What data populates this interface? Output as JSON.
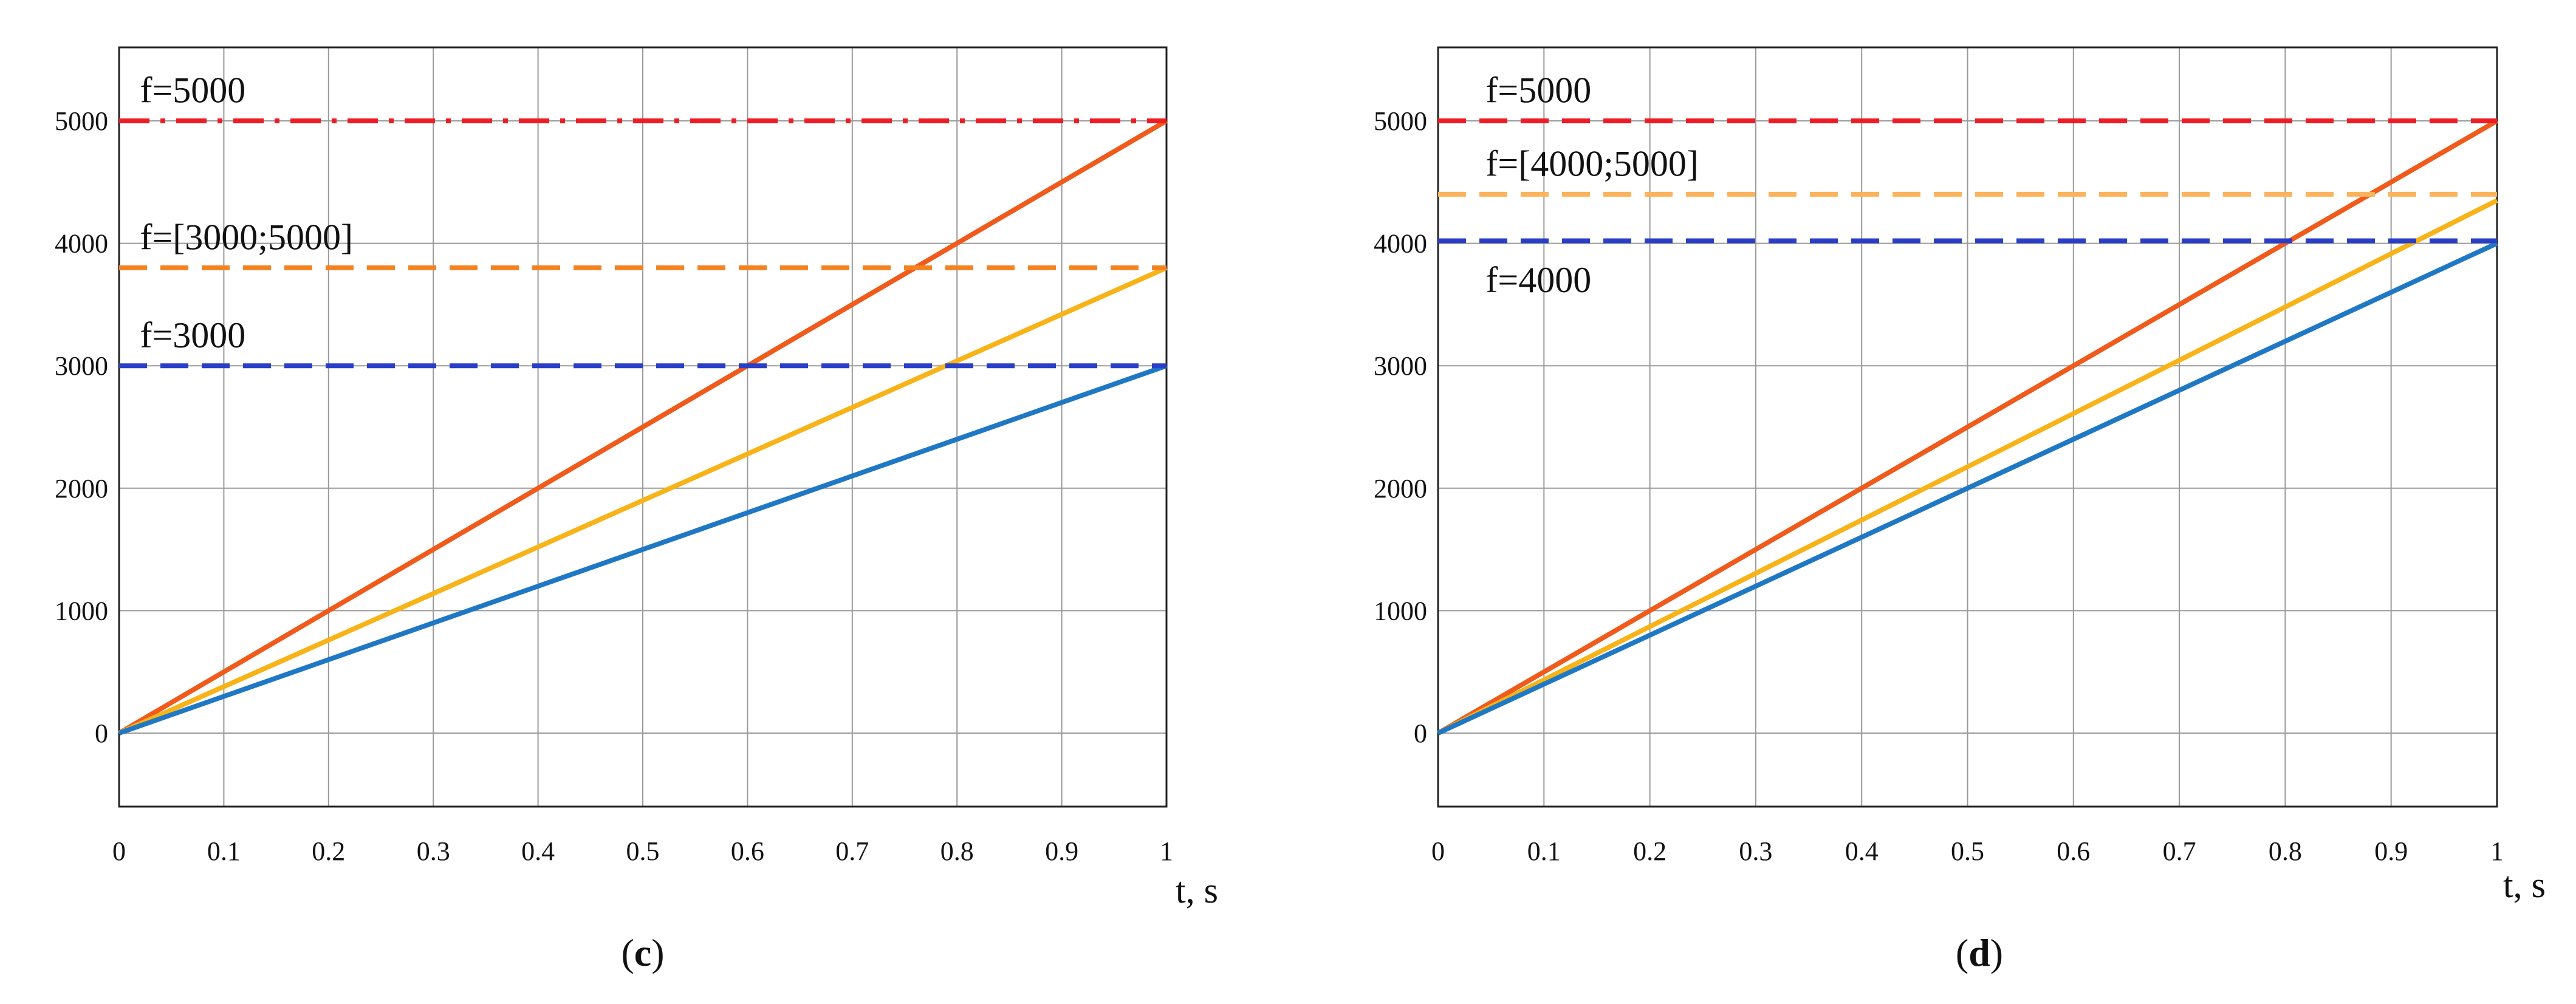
{
  "chart_data": [
    {
      "type": "line",
      "caption": "c",
      "xlabel": "t, s",
      "ylabel": "",
      "xlim": [
        0,
        1
      ],
      "ylim": [
        -600,
        5600
      ],
      "x_ticks": [
        0,
        0.1,
        0.2,
        0.3,
        0.4,
        0.5,
        0.6,
        0.7,
        0.8,
        0.9,
        1
      ],
      "y_ticks": [
        0,
        1000,
        2000,
        3000,
        4000,
        5000
      ],
      "grid": true,
      "series": [
        {
          "x": [
            0,
            1
          ],
          "y": [
            0,
            5000
          ],
          "color": "#f05a1a",
          "style": "solid"
        },
        {
          "x": [
            0,
            1
          ],
          "y": [
            0,
            3800
          ],
          "color": "#f7b318",
          "style": "solid"
        },
        {
          "x": [
            0,
            1
          ],
          "y": [
            0,
            3000
          ],
          "color": "#1f78c4",
          "style": "solid"
        },
        {
          "x": [
            0,
            1
          ],
          "y": [
            5000,
            5000
          ],
          "color": "#ee1c25",
          "style": "dashdot"
        },
        {
          "x": [
            0,
            1
          ],
          "y": [
            3800,
            3800
          ],
          "color": "#f58220",
          "style": "dashed"
        },
        {
          "x": [
            0,
            1
          ],
          "y": [
            3000,
            3000
          ],
          "color": "#2a3fc7",
          "style": "dashed"
        }
      ],
      "annotations": [
        {
          "text": "f=5000",
          "x": 0.02,
          "y": 5150
        },
        {
          "text": "f=[3000;5000]",
          "x": 0.02,
          "y": 3950
        },
        {
          "text": "f=3000",
          "x": 0.02,
          "y": 3150
        }
      ]
    },
    {
      "type": "line",
      "caption": "d",
      "xlabel": "t, s",
      "ylabel": "",
      "xlim": [
        0,
        1
      ],
      "ylim": [
        -600,
        5600
      ],
      "x_ticks": [
        0,
        0.1,
        0.2,
        0.3,
        0.4,
        0.5,
        0.6,
        0.7,
        0.8,
        0.9,
        1
      ],
      "y_ticks": [
        0,
        1000,
        2000,
        3000,
        4000,
        5000
      ],
      "grid": true,
      "series": [
        {
          "x": [
            0,
            1
          ],
          "y": [
            0,
            5000
          ],
          "color": "#f05a1a",
          "style": "solid"
        },
        {
          "x": [
            0,
            1
          ],
          "y": [
            0,
            4350
          ],
          "color": "#f7b318",
          "style": "solid"
        },
        {
          "x": [
            0,
            1
          ],
          "y": [
            0,
            4000
          ],
          "color": "#1f78c4",
          "style": "solid"
        },
        {
          "x": [
            0,
            1
          ],
          "y": [
            5000,
            5000
          ],
          "color": "#ee1c25",
          "style": "dashed"
        },
        {
          "x": [
            0,
            1
          ],
          "y": [
            4400,
            4400
          ],
          "color": "#fbb45c",
          "style": "dashed"
        },
        {
          "x": [
            0,
            1
          ],
          "y": [
            4020,
            4020
          ],
          "color": "#2a3fc7",
          "style": "dashed"
        }
      ],
      "annotations": [
        {
          "text": "f=5000",
          "x": 0.045,
          "y": 5150
        },
        {
          "text": "f=[4000;5000]",
          "x": 0.045,
          "y": 4550
        },
        {
          "text": "f=4000",
          "x": 0.045,
          "y": 3600
        }
      ]
    }
  ]
}
